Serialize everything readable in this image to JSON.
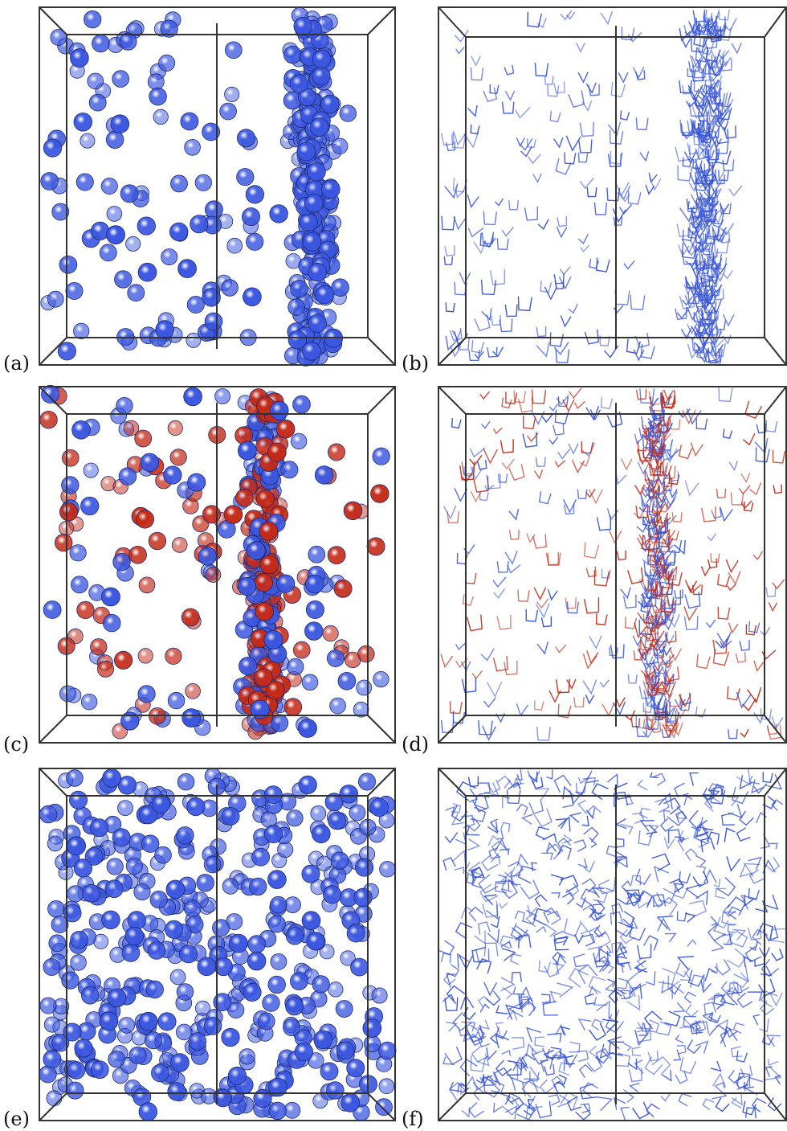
{
  "figure": {
    "panels": [
      {
        "id": "a",
        "label": "(a)",
        "kind": "spheres",
        "distribution": "slab-right",
        "colors": [
          "#3b57e0"
        ]
      },
      {
        "id": "b",
        "label": "(b)",
        "kind": "molecules",
        "distribution": "slab-right",
        "colors": [
          "#3a56d8"
        ]
      },
      {
        "id": "c",
        "label": "(c)",
        "kind": "spheres",
        "distribution": "slab-center",
        "colors": [
          "#3b57e0",
          "#c42a17"
        ]
      },
      {
        "id": "d",
        "label": "(d)",
        "kind": "molecules",
        "distribution": "slab-center",
        "colors": [
          "#3a56d8",
          "#c0301c"
        ]
      },
      {
        "id": "e",
        "label": "(e)",
        "kind": "spheres",
        "distribution": "uniform",
        "colors": [
          "#3b57e0"
        ]
      },
      {
        "id": "f",
        "label": "(f)",
        "kind": "molecules",
        "distribution": "uniform",
        "colors": [
          "#3a56d8"
        ]
      }
    ]
  }
}
